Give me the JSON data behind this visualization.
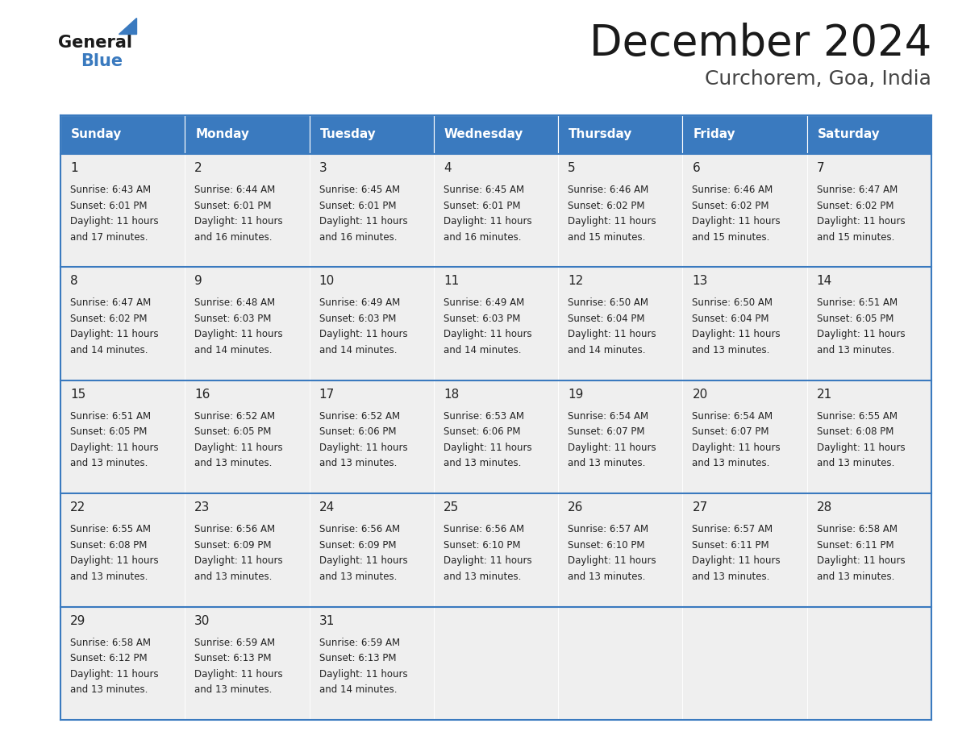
{
  "title": "December 2024",
  "subtitle": "Curchorem, Goa, India",
  "header_color": "#3a7abf",
  "header_text_color": "#ffffff",
  "cell_bg_color": "#efefef",
  "border_color": "#3a7abf",
  "days_of_week": [
    "Sunday",
    "Monday",
    "Tuesday",
    "Wednesday",
    "Thursday",
    "Friday",
    "Saturday"
  ],
  "weeks": [
    [
      {
        "day": 1,
        "sunrise": "6:43 AM",
        "sunset": "6:01 PM",
        "daylight": "11 hours and 17 minutes."
      },
      {
        "day": 2,
        "sunrise": "6:44 AM",
        "sunset": "6:01 PM",
        "daylight": "11 hours and 16 minutes."
      },
      {
        "day": 3,
        "sunrise": "6:45 AM",
        "sunset": "6:01 PM",
        "daylight": "11 hours and 16 minutes."
      },
      {
        "day": 4,
        "sunrise": "6:45 AM",
        "sunset": "6:01 PM",
        "daylight": "11 hours and 16 minutes."
      },
      {
        "day": 5,
        "sunrise": "6:46 AM",
        "sunset": "6:02 PM",
        "daylight": "11 hours and 15 minutes."
      },
      {
        "day": 6,
        "sunrise": "6:46 AM",
        "sunset": "6:02 PM",
        "daylight": "11 hours and 15 minutes."
      },
      {
        "day": 7,
        "sunrise": "6:47 AM",
        "sunset": "6:02 PM",
        "daylight": "11 hours and 15 minutes."
      }
    ],
    [
      {
        "day": 8,
        "sunrise": "6:47 AM",
        "sunset": "6:02 PM",
        "daylight": "11 hours and 14 minutes."
      },
      {
        "day": 9,
        "sunrise": "6:48 AM",
        "sunset": "6:03 PM",
        "daylight": "11 hours and 14 minutes."
      },
      {
        "day": 10,
        "sunrise": "6:49 AM",
        "sunset": "6:03 PM",
        "daylight": "11 hours and 14 minutes."
      },
      {
        "day": 11,
        "sunrise": "6:49 AM",
        "sunset": "6:03 PM",
        "daylight": "11 hours and 14 minutes."
      },
      {
        "day": 12,
        "sunrise": "6:50 AM",
        "sunset": "6:04 PM",
        "daylight": "11 hours and 14 minutes."
      },
      {
        "day": 13,
        "sunrise": "6:50 AM",
        "sunset": "6:04 PM",
        "daylight": "11 hours and 13 minutes."
      },
      {
        "day": 14,
        "sunrise": "6:51 AM",
        "sunset": "6:05 PM",
        "daylight": "11 hours and 13 minutes."
      }
    ],
    [
      {
        "day": 15,
        "sunrise": "6:51 AM",
        "sunset": "6:05 PM",
        "daylight": "11 hours and 13 minutes."
      },
      {
        "day": 16,
        "sunrise": "6:52 AM",
        "sunset": "6:05 PM",
        "daylight": "11 hours and 13 minutes."
      },
      {
        "day": 17,
        "sunrise": "6:52 AM",
        "sunset": "6:06 PM",
        "daylight": "11 hours and 13 minutes."
      },
      {
        "day": 18,
        "sunrise": "6:53 AM",
        "sunset": "6:06 PM",
        "daylight": "11 hours and 13 minutes."
      },
      {
        "day": 19,
        "sunrise": "6:54 AM",
        "sunset": "6:07 PM",
        "daylight": "11 hours and 13 minutes."
      },
      {
        "day": 20,
        "sunrise": "6:54 AM",
        "sunset": "6:07 PM",
        "daylight": "11 hours and 13 minutes."
      },
      {
        "day": 21,
        "sunrise": "6:55 AM",
        "sunset": "6:08 PM",
        "daylight": "11 hours and 13 minutes."
      }
    ],
    [
      {
        "day": 22,
        "sunrise": "6:55 AM",
        "sunset": "6:08 PM",
        "daylight": "11 hours and 13 minutes."
      },
      {
        "day": 23,
        "sunrise": "6:56 AM",
        "sunset": "6:09 PM",
        "daylight": "11 hours and 13 minutes."
      },
      {
        "day": 24,
        "sunrise": "6:56 AM",
        "sunset": "6:09 PM",
        "daylight": "11 hours and 13 minutes."
      },
      {
        "day": 25,
        "sunrise": "6:56 AM",
        "sunset": "6:10 PM",
        "daylight": "11 hours and 13 minutes."
      },
      {
        "day": 26,
        "sunrise": "6:57 AM",
        "sunset": "6:10 PM",
        "daylight": "11 hours and 13 minutes."
      },
      {
        "day": 27,
        "sunrise": "6:57 AM",
        "sunset": "6:11 PM",
        "daylight": "11 hours and 13 minutes."
      },
      {
        "day": 28,
        "sunrise": "6:58 AM",
        "sunset": "6:11 PM",
        "daylight": "11 hours and 13 minutes."
      }
    ],
    [
      {
        "day": 29,
        "sunrise": "6:58 AM",
        "sunset": "6:12 PM",
        "daylight": "11 hours and 13 minutes."
      },
      {
        "day": 30,
        "sunrise": "6:59 AM",
        "sunset": "6:13 PM",
        "daylight": "11 hours and 13 minutes."
      },
      {
        "day": 31,
        "sunrise": "6:59 AM",
        "sunset": "6:13 PM",
        "daylight": "11 hours and 14 minutes."
      },
      null,
      null,
      null,
      null
    ]
  ],
  "logo_general_color": "#1a1a1a",
  "logo_blue_color": "#3a7abf",
  "logo_triangle_color": "#3a7abf",
  "title_fontsize": 38,
  "subtitle_fontsize": 18,
  "header_fontsize": 11,
  "day_num_fontsize": 11,
  "cell_text_fontsize": 8.5
}
